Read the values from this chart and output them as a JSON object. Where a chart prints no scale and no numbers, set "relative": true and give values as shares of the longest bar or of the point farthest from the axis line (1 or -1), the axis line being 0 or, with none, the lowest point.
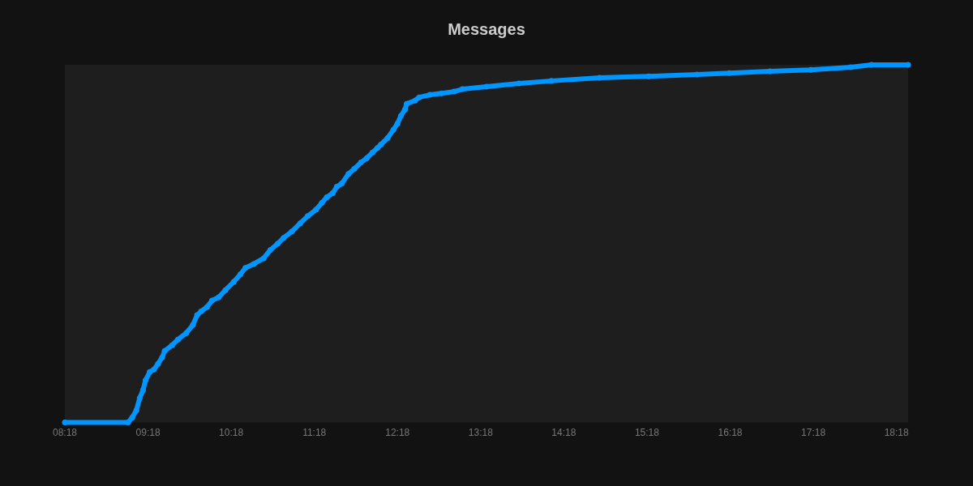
{
  "chart_data": {
    "type": "line",
    "title": "Messages",
    "relative": true,
    "marker": "circle",
    "line_style": "solid",
    "x": [
      8.3,
      9.06,
      9.11,
      9.16,
      9.2,
      9.24,
      9.27,
      9.32,
      9.37,
      9.42,
      9.47,
      9.5,
      9.59,
      9.66,
      9.76,
      9.84,
      9.89,
      9.94,
      10.01,
      10.07,
      10.15,
      10.23,
      10.33,
      10.41,
      10.47,
      10.57,
      10.69,
      10.77,
      10.86,
      10.93,
      11.03,
      11.13,
      11.22,
      11.32,
      11.39,
      11.45,
      11.52,
      11.57,
      11.63,
      11.71,
      11.78,
      11.86,
      11.93,
      12.0,
      12.06,
      12.1,
      12.18,
      12.25,
      12.3,
      12.34,
      12.39,
      12.41,
      12.51,
      12.56,
      12.69,
      12.83,
      12.98,
      13.08,
      13.37,
      13.76,
      14.15,
      14.73,
      15.32,
      15.9,
      16.29,
      16.78,
      17.27,
      17.75,
      18.0,
      18.44
    ],
    "xlim": [
      8.3,
      18.44
    ],
    "xticks": [
      {
        "value": 8.3,
        "label": "08:18"
      },
      {
        "value": 9.3,
        "label": "09:18"
      },
      {
        "value": 10.3,
        "label": "10:18"
      },
      {
        "value": 11.3,
        "label": "11:18"
      },
      {
        "value": 12.3,
        "label": "12:18"
      },
      {
        "value": 13.3,
        "label": "13:18"
      },
      {
        "value": 14.3,
        "label": "14:18"
      },
      {
        "value": 15.3,
        "label": "15:18"
      },
      {
        "value": 16.3,
        "label": "16:18"
      },
      {
        "value": 17.3,
        "label": "17:18"
      },
      {
        "value": 18.3,
        "label": "18:18"
      }
    ],
    "series": [
      {
        "color": "#0096ff",
        "values": [
          0,
          0,
          0.014,
          0.034,
          0.068,
          0.091,
          0.118,
          0.141,
          0.148,
          0.164,
          0.182,
          0.2,
          0.216,
          0.232,
          0.25,
          0.273,
          0.3,
          0.311,
          0.323,
          0.341,
          0.35,
          0.37,
          0.393,
          0.414,
          0.432,
          0.443,
          0.459,
          0.482,
          0.5,
          0.516,
          0.534,
          0.557,
          0.577,
          0.595,
          0.614,
          0.63,
          0.641,
          0.659,
          0.668,
          0.695,
          0.709,
          0.727,
          0.739,
          0.755,
          0.768,
          0.777,
          0.795,
          0.818,
          0.836,
          0.857,
          0.875,
          0.891,
          0.9,
          0.909,
          0.916,
          0.92,
          0.925,
          0.932,
          0.939,
          0.948,
          0.955,
          0.964,
          0.968,
          0.973,
          0.977,
          0.982,
          0.986,
          0.993,
          1,
          1
        ]
      }
    ]
  }
}
